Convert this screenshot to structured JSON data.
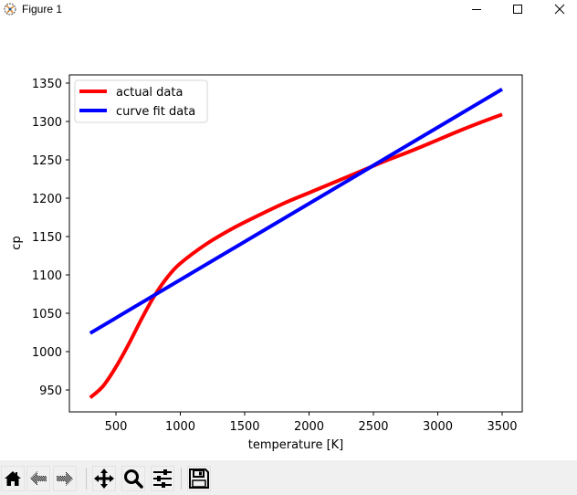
{
  "window": {
    "title": "Figure 1",
    "icon": "matplotlib-icon",
    "controls": [
      "minimize",
      "maximize",
      "close"
    ]
  },
  "toolbar": {
    "buttons": [
      {
        "name": "home",
        "icon": "home-icon"
      },
      {
        "name": "back",
        "icon": "back-arrow-icon"
      },
      {
        "name": "forward",
        "icon": "forward-arrow-icon"
      },
      {
        "name": "pan",
        "icon": "move-icon"
      },
      {
        "name": "zoom",
        "icon": "magnifier-icon"
      },
      {
        "name": "configure-subplots",
        "icon": "sliders-icon"
      },
      {
        "name": "save",
        "icon": "floppy-disk-icon"
      }
    ]
  },
  "chart_data": {
    "type": "line",
    "title": "",
    "xlabel": "temperature [K]",
    "ylabel": "cp",
    "xlim": [
      140,
      3660
    ],
    "ylim": [
      921,
      1360
    ],
    "xticks": [
      500,
      1000,
      1500,
      2000,
      2500,
      3000,
      3500
    ],
    "yticks": [
      950,
      1000,
      1050,
      1100,
      1150,
      1200,
      1250,
      1300,
      1350
    ],
    "grid": false,
    "legend": {
      "position": "upper left",
      "entries": [
        "actual data",
        "curve fit data"
      ]
    },
    "series": [
      {
        "name": "actual data",
        "color": "#ff0000",
        "x": [
          300,
          400,
          500,
          600,
          700,
          800,
          900,
          1000,
          1200,
          1400,
          1600,
          1800,
          2000,
          2200,
          2400,
          2600,
          2800,
          3000,
          3200,
          3400,
          3500
        ],
        "y": [
          940,
          955,
          980,
          1010,
          1043,
          1073,
          1097,
          1115,
          1140,
          1160,
          1177,
          1193,
          1207,
          1221,
          1235,
          1249,
          1262,
          1276,
          1290,
          1303,
          1309
        ]
      },
      {
        "name": "curve fit data",
        "color": "#0000ff",
        "x": [
          300,
          3500
        ],
        "y": [
          1024,
          1342
        ]
      }
    ]
  }
}
